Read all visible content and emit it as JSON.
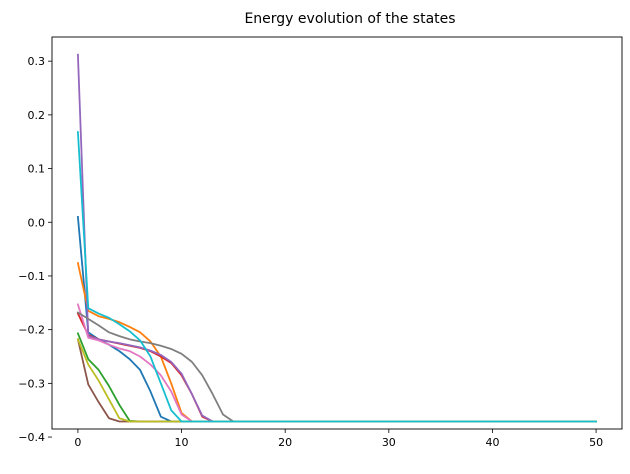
{
  "chart_data": {
    "type": "line",
    "title": "Energy evolution of the states",
    "xlabel": "",
    "ylabel": "",
    "xlim": [
      -2.5,
      52.5
    ],
    "ylim": [
      -0.385,
      0.345
    ],
    "x_ticks": [
      0,
      10,
      20,
      30,
      40,
      50
    ],
    "x_tick_labels": [
      "0",
      "10",
      "20",
      "30",
      "40",
      "50"
    ],
    "y_ticks": [
      -0.4,
      -0.3,
      -0.2,
      -0.1,
      0.0,
      0.1,
      0.2,
      0.3
    ],
    "y_tick_labels": [
      "−0.4",
      "−0.3",
      "−0.2",
      "−0.1",
      "0.0",
      "0.1",
      "0.2",
      "0.3"
    ],
    "grid": false,
    "legend": "none",
    "series": [
      {
        "color": "#1f77b4",
        "x": [
          0,
          1,
          2,
          3,
          4,
          5,
          6,
          7,
          8,
          9,
          50
        ],
        "y": [
          0.01,
          -0.205,
          -0.218,
          -0.228,
          -0.24,
          -0.255,
          -0.275,
          -0.315,
          -0.362,
          -0.371,
          -0.371
        ]
      },
      {
        "color": "#ff7f0e",
        "x": [
          0,
          1,
          2,
          3,
          4,
          5,
          6,
          7,
          8,
          9,
          10,
          11,
          50
        ],
        "y": [
          -0.076,
          -0.165,
          -0.175,
          -0.18,
          -0.186,
          -0.195,
          -0.205,
          -0.222,
          -0.25,
          -0.3,
          -0.355,
          -0.371,
          -0.371
        ]
      },
      {
        "color": "#2ca02c",
        "x": [
          0,
          1,
          2,
          3,
          4,
          5,
          6,
          50
        ],
        "y": [
          -0.207,
          -0.255,
          -0.275,
          -0.305,
          -0.34,
          -0.37,
          -0.371,
          -0.371
        ]
      },
      {
        "color": "#d62728",
        "x": [
          0,
          1,
          2,
          3,
          4,
          5,
          6,
          7,
          8,
          9,
          10,
          11,
          12,
          13,
          50
        ],
        "y": [
          -0.17,
          -0.21,
          -0.218,
          -0.222,
          -0.226,
          -0.23,
          -0.234,
          -0.24,
          -0.25,
          -0.262,
          -0.285,
          -0.32,
          -0.362,
          -0.371,
          -0.371
        ]
      },
      {
        "color": "#9467bd",
        "x": [
          0,
          1,
          2,
          3,
          4,
          5,
          6,
          7,
          8,
          9,
          10,
          11,
          12,
          13,
          50
        ],
        "y": [
          0.312,
          -0.212,
          -0.218,
          -0.222,
          -0.225,
          -0.229,
          -0.233,
          -0.239,
          -0.247,
          -0.26,
          -0.282,
          -0.32,
          -0.36,
          -0.371,
          -0.371
        ]
      },
      {
        "color": "#8c564b",
        "x": [
          0,
          1,
          2,
          3,
          4,
          5,
          50
        ],
        "y": [
          -0.218,
          -0.302,
          -0.335,
          -0.365,
          -0.371,
          -0.371,
          -0.371
        ]
      },
      {
        "color": "#e377c2",
        "x": [
          0,
          1,
          2,
          3,
          4,
          5,
          6,
          7,
          8,
          9,
          10,
          11,
          50
        ],
        "y": [
          -0.153,
          -0.215,
          -0.22,
          -0.228,
          -0.235,
          -0.24,
          -0.25,
          -0.265,
          -0.285,
          -0.315,
          -0.358,
          -0.371,
          -0.371
        ]
      },
      {
        "color": "#7f7f7f",
        "x": [
          0,
          1,
          2,
          3,
          4,
          5,
          6,
          7,
          8,
          9,
          10,
          11,
          12,
          13,
          14,
          15,
          50
        ],
        "y": [
          -0.168,
          -0.18,
          -0.192,
          -0.205,
          -0.212,
          -0.218,
          -0.222,
          -0.225,
          -0.23,
          -0.236,
          -0.245,
          -0.26,
          -0.285,
          -0.32,
          -0.358,
          -0.371,
          -0.371
        ]
      },
      {
        "color": "#bcbd22",
        "x": [
          0,
          1,
          2,
          3,
          4,
          5,
          50
        ],
        "y": [
          -0.218,
          -0.265,
          -0.295,
          -0.33,
          -0.365,
          -0.371,
          -0.371
        ]
      },
      {
        "color": "#17becf",
        "x": [
          0,
          1,
          2,
          3,
          4,
          5,
          6,
          7,
          8,
          9,
          10,
          50
        ],
        "y": [
          0.168,
          -0.16,
          -0.17,
          -0.178,
          -0.19,
          -0.203,
          -0.22,
          -0.25,
          -0.3,
          -0.35,
          -0.371,
          -0.371
        ]
      }
    ]
  }
}
